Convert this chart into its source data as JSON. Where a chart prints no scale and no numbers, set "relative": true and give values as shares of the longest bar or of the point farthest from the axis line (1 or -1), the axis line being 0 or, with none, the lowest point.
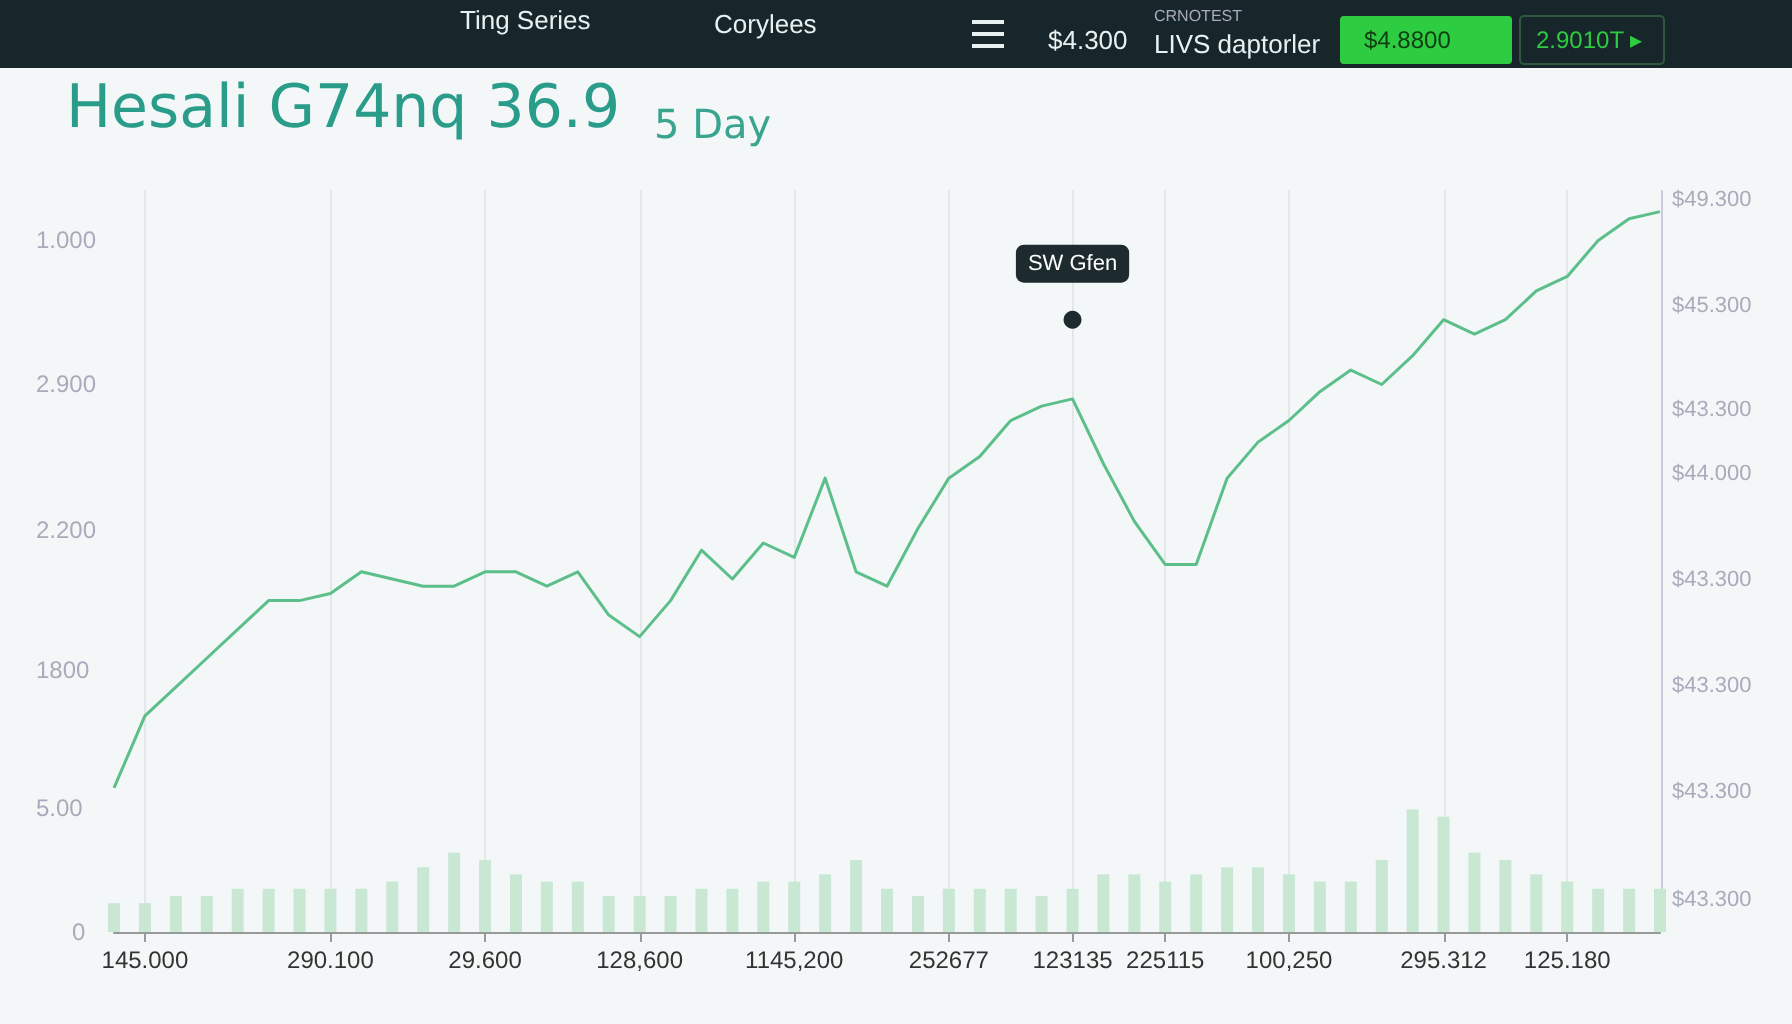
{
  "chart_data": {
    "type": "line",
    "title": "Hesali G74nq 36.9",
    "subtitle": "5 Day",
    "relative": true,
    "grid": "x",
    "marker": "none",
    "line_style": "solid",
    "categories": [
      null,
      "145.000",
      null,
      null,
      null,
      null,
      null,
      "290.100",
      null,
      null,
      null,
      null,
      "29.600",
      null,
      null,
      null,
      null,
      "128,600",
      null,
      null,
      null,
      null,
      "1145,200",
      null,
      null,
      null,
      null,
      "252677",
      null,
      null,
      null,
      "123135",
      null,
      null,
      "225115",
      null,
      null,
      null,
      "100,250",
      null,
      null,
      null,
      null,
      "295.312",
      null,
      null,
      null,
      "125.180",
      null,
      null,
      null
    ],
    "series": [
      {
        "type": "bar",
        "color": "#c8e8d4",
        "values": [
          0.04,
          0.04,
          0.05,
          0.05,
          0.06,
          0.06,
          0.06,
          0.06,
          0.06,
          0.07,
          0.09,
          0.11,
          0.1,
          0.08,
          0.07,
          0.07,
          0.05,
          0.05,
          0.05,
          0.06,
          0.06,
          0.07,
          0.07,
          0.08,
          0.1,
          0.06,
          0.05,
          0.06,
          0.06,
          0.06,
          0.05,
          0.06,
          0.08,
          0.08,
          0.07,
          0.08,
          0.09,
          0.09,
          0.08,
          0.07,
          0.07,
          0.1,
          0.17,
          0.16,
          0.11,
          0.1,
          0.08,
          0.07,
          0.06,
          0.06,
          0.06
        ]
      },
      {
        "color": "#5cbf8a",
        "values": [
          0.2,
          0.3,
          0.34,
          0.38,
          0.42,
          0.46,
          0.46,
          0.47,
          0.5,
          0.49,
          0.48,
          0.48,
          0.5,
          0.5,
          0.48,
          0.5,
          0.44,
          0.41,
          0.46,
          0.53,
          0.49,
          0.54,
          0.52,
          0.63,
          0.5,
          0.48,
          0.56,
          0.63,
          0.66,
          0.71,
          0.73,
          0.74,
          0.65,
          0.57,
          0.51,
          0.51,
          0.63,
          0.68,
          0.71,
          0.75,
          0.78,
          0.76,
          0.8,
          0.85,
          0.83,
          0.85,
          0.89,
          0.91,
          0.96,
          0.99,
          1
        ]
      }
    ],
    "annotations": [
      "Ting Series",
      "Corylees",
      "$4.300",
      "CRNOTEST",
      "LIVS daptorler",
      "$4.8800",
      "2.9010T ▸",
      "1.000",
      "2.900",
      "2.200",
      "1800",
      "5.00",
      "0",
      "$49.300",
      "$45.300",
      "$43.300",
      "$44.000",
      "$43.300",
      "$43.300",
      "$43.300",
      "$43.300",
      {
        "text": "SW Gfen",
        "x": "123135",
        "y": 0.85
      }
    ]
  }
}
